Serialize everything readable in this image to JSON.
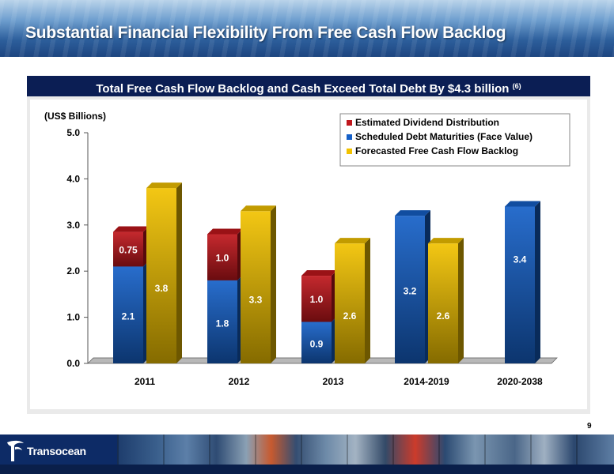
{
  "header": {
    "title": "Substantial Financial Flexibility From Free Cash Flow Backlog"
  },
  "subtitle": {
    "text": "Total Free Cash Flow Backlog and Cash Exceed Total Debt By $4.3 billion",
    "superscript": "(6)"
  },
  "page_number": "9",
  "footer": {
    "logo_text": "Transocean"
  },
  "chart_data": {
    "type": "bar",
    "unit_label": "(US$ Billions)",
    "categories": [
      "2011",
      "2012",
      "2013",
      "2014-2019",
      "2020-2038"
    ],
    "ylim": [
      0,
      5
    ],
    "yticks": [
      "0.0",
      "1.0",
      "2.0",
      "3.0",
      "4.0",
      "5.0"
    ],
    "grid": false,
    "legend_position": "top-right",
    "series": [
      {
        "name": "Scheduled Debt Maturities (Face Value)",
        "values": [
          2.1,
          1.8,
          0.9,
          3.2,
          3.4
        ],
        "labels": [
          "2.1",
          "1.8",
          "0.9",
          "3.2",
          "3.4"
        ],
        "color": "#1560c8",
        "stack": "left"
      },
      {
        "name": "Estimated Dividend Distribution",
        "values": [
          0.75,
          1.0,
          1.0,
          null,
          null
        ],
        "labels": [
          "0.75",
          "1.0",
          "1.0",
          "",
          ""
        ],
        "color": "#c0161c",
        "stack": "left"
      },
      {
        "name": "Forecasted Free Cash Flow Backlog",
        "values": [
          3.8,
          3.3,
          2.6,
          2.6,
          null
        ],
        "labels": [
          "3.8",
          "3.3",
          "2.6",
          "2.6",
          ""
        ],
        "color": "#f2c200",
        "stack": "right"
      }
    ],
    "legend_order": [
      "Estimated Dividend Distribution",
      "Scheduled Debt Maturities (Face Value)",
      "Forecasted Free Cash Flow Backlog"
    ]
  }
}
